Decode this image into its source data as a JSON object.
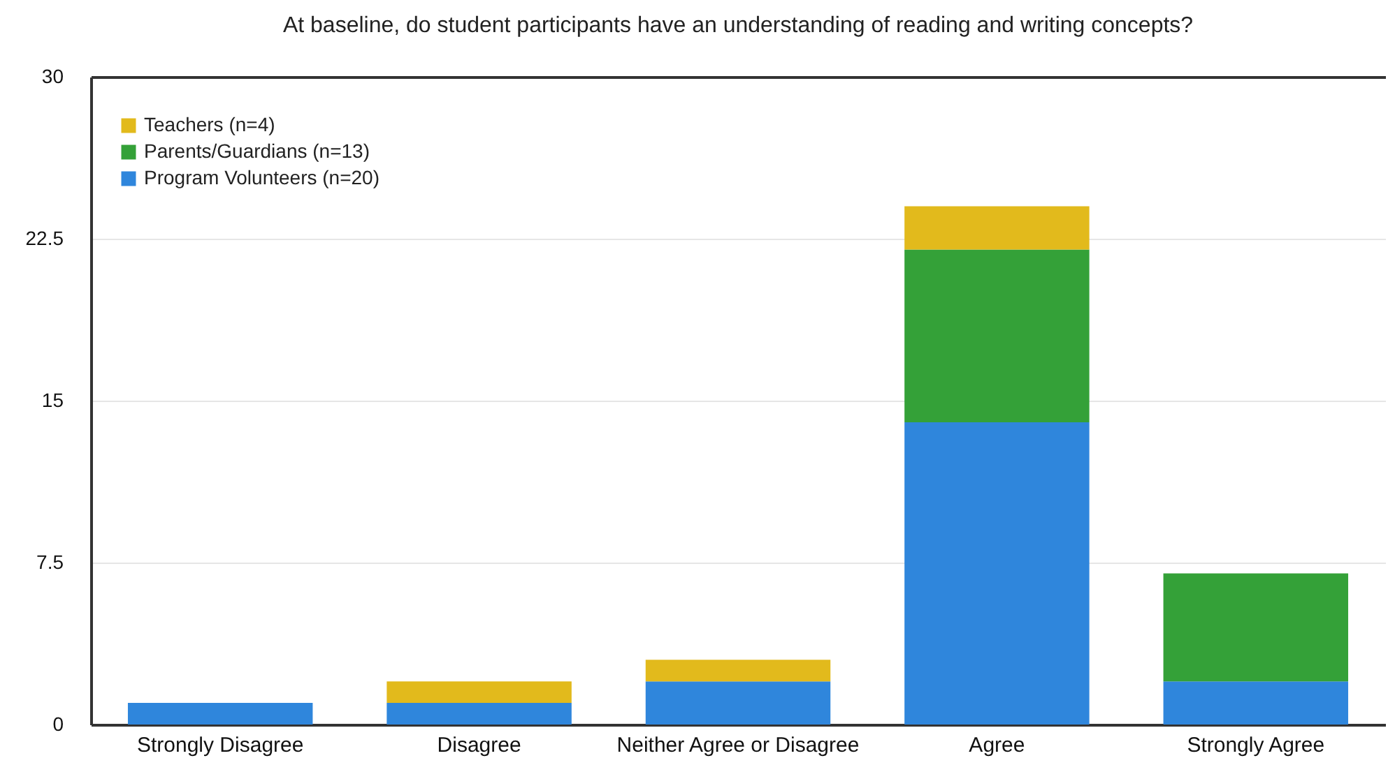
{
  "chart_data": {
    "type": "bar",
    "title": "At baseline, do student participants have an understanding of reading and writing concepts?",
    "categories": [
      "Strongly Disagree",
      "Disagree",
      "Neither Agree or Disagree",
      "Agree",
      "Strongly Agree"
    ],
    "series": [
      {
        "name": "Program Volunteers (n=20)",
        "color": "#2f86dc",
        "values": [
          1,
          1,
          2,
          14,
          2
        ]
      },
      {
        "name": "Parents/Guardians  (n=13)",
        "color": "#34a138",
        "values": [
          null,
          null,
          null,
          8,
          5
        ]
      },
      {
        "name": "Teachers (n=4)",
        "color": "#e2ba1c",
        "values": [
          null,
          1,
          1,
          2,
          null
        ]
      }
    ],
    "stacked": true,
    "ylim": [
      0,
      30
    ],
    "yticks": [
      0,
      7.5,
      15,
      22.5,
      30
    ],
    "grid": "y",
    "legend": "top left"
  }
}
